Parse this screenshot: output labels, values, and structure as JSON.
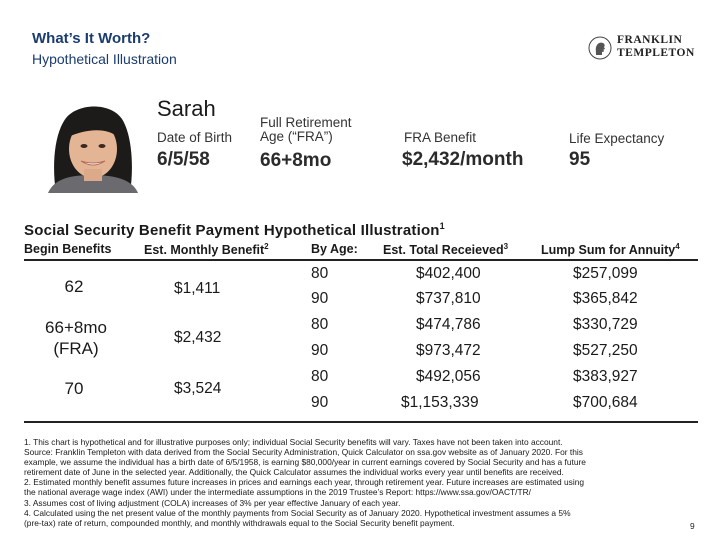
{
  "header": {
    "title": "What’s It Worth?",
    "subtitle": "Hypothetical Illustration",
    "logo_text": [
      "FRANKLIN",
      "TEMPLETON"
    ]
  },
  "profile": {
    "name": "Sarah",
    "dob_label": "Date of Birth",
    "dob_value": "6/5/58",
    "fra_label_line1": "Full Retirement",
    "fra_label_line2": "Age (“FRA”)",
    "fra_value": "66+8mo",
    "benefit_label": "FRA Benefit",
    "benefit_value": "$2,432/month",
    "life_label": "Life Expectancy",
    "life_value": "95"
  },
  "table": {
    "title": "Social Security Benefit Payment Hypothetical Illustration",
    "title_sup": "1",
    "headers": {
      "begin": "Begin Benefits",
      "monthly": "Est. Monthly Benefit",
      "monthly_sup": "2",
      "by_age": "By Age:",
      "total": "Est. Total Receieved",
      "total_sup": "3",
      "lump": "Lump Sum for Annuity",
      "lump_sup": "4"
    },
    "groups": [
      {
        "begin": "62",
        "begin2": "",
        "monthly": "$1,411",
        "rows": [
          {
            "age": "80",
            "total": "$402,400",
            "lump": "$257,099"
          },
          {
            "age": "90",
            "total": "$737,810",
            "lump": "$365,842"
          }
        ]
      },
      {
        "begin": "66+8mo",
        "begin2": "(FRA)",
        "monthly": "$2,432",
        "rows": [
          {
            "age": "80",
            "total": "$474,786",
            "lump": "$330,729"
          },
          {
            "age": "90",
            "total": "$973,472",
            "lump": "$527,250"
          }
        ]
      },
      {
        "begin": "70",
        "begin2": "",
        "monthly": "$3,524",
        "rows": [
          {
            "age": "80",
            "total": "$492,056",
            "lump": "$383,927"
          },
          {
            "age": "90",
            "total": "$1,153,339",
            "lump": "$700,684"
          }
        ]
      }
    ]
  },
  "footnotes": [
    "1. This chart is hypothetical and for illustrative purposes only; individual Social Security benefits will vary. Taxes have not been taken into account.",
    "Source: Franklin Templeton with data derived from the Social Security Administration, Quick Calculator on ssa.gov website as of January 2020. For this",
    "example, we assume the individual has a birth date of 6/5/1958, is earning $80,000/year in current earnings covered by Social Security and has a future",
    "retirement date of June in the selected year. Additionally, the Quick Calculator assumes the individual works every year until benefits are received.",
    "2. Estimated monthly benefit assumes future increases in prices and earnings each year, through retirement year. Future increases are estimated using",
    "the national average wage index (AWI) under the intermediate assumptions in the 2019 Trustee’s Report: https://www.ssa.gov/OACT/TR/",
    "3. Assumes cost of living adjustment (COLA) increases of 3% per year effective January of each year.",
    "4. Calculated using the net present value of the monthly payments from Social Security as of January 2020. Hypothetical investment assumes a 5%",
    "(pre-tax) rate of return, compounded monthly, and monthly withdrawals equal to the Social Security benefit payment."
  ],
  "page_number": "9"
}
